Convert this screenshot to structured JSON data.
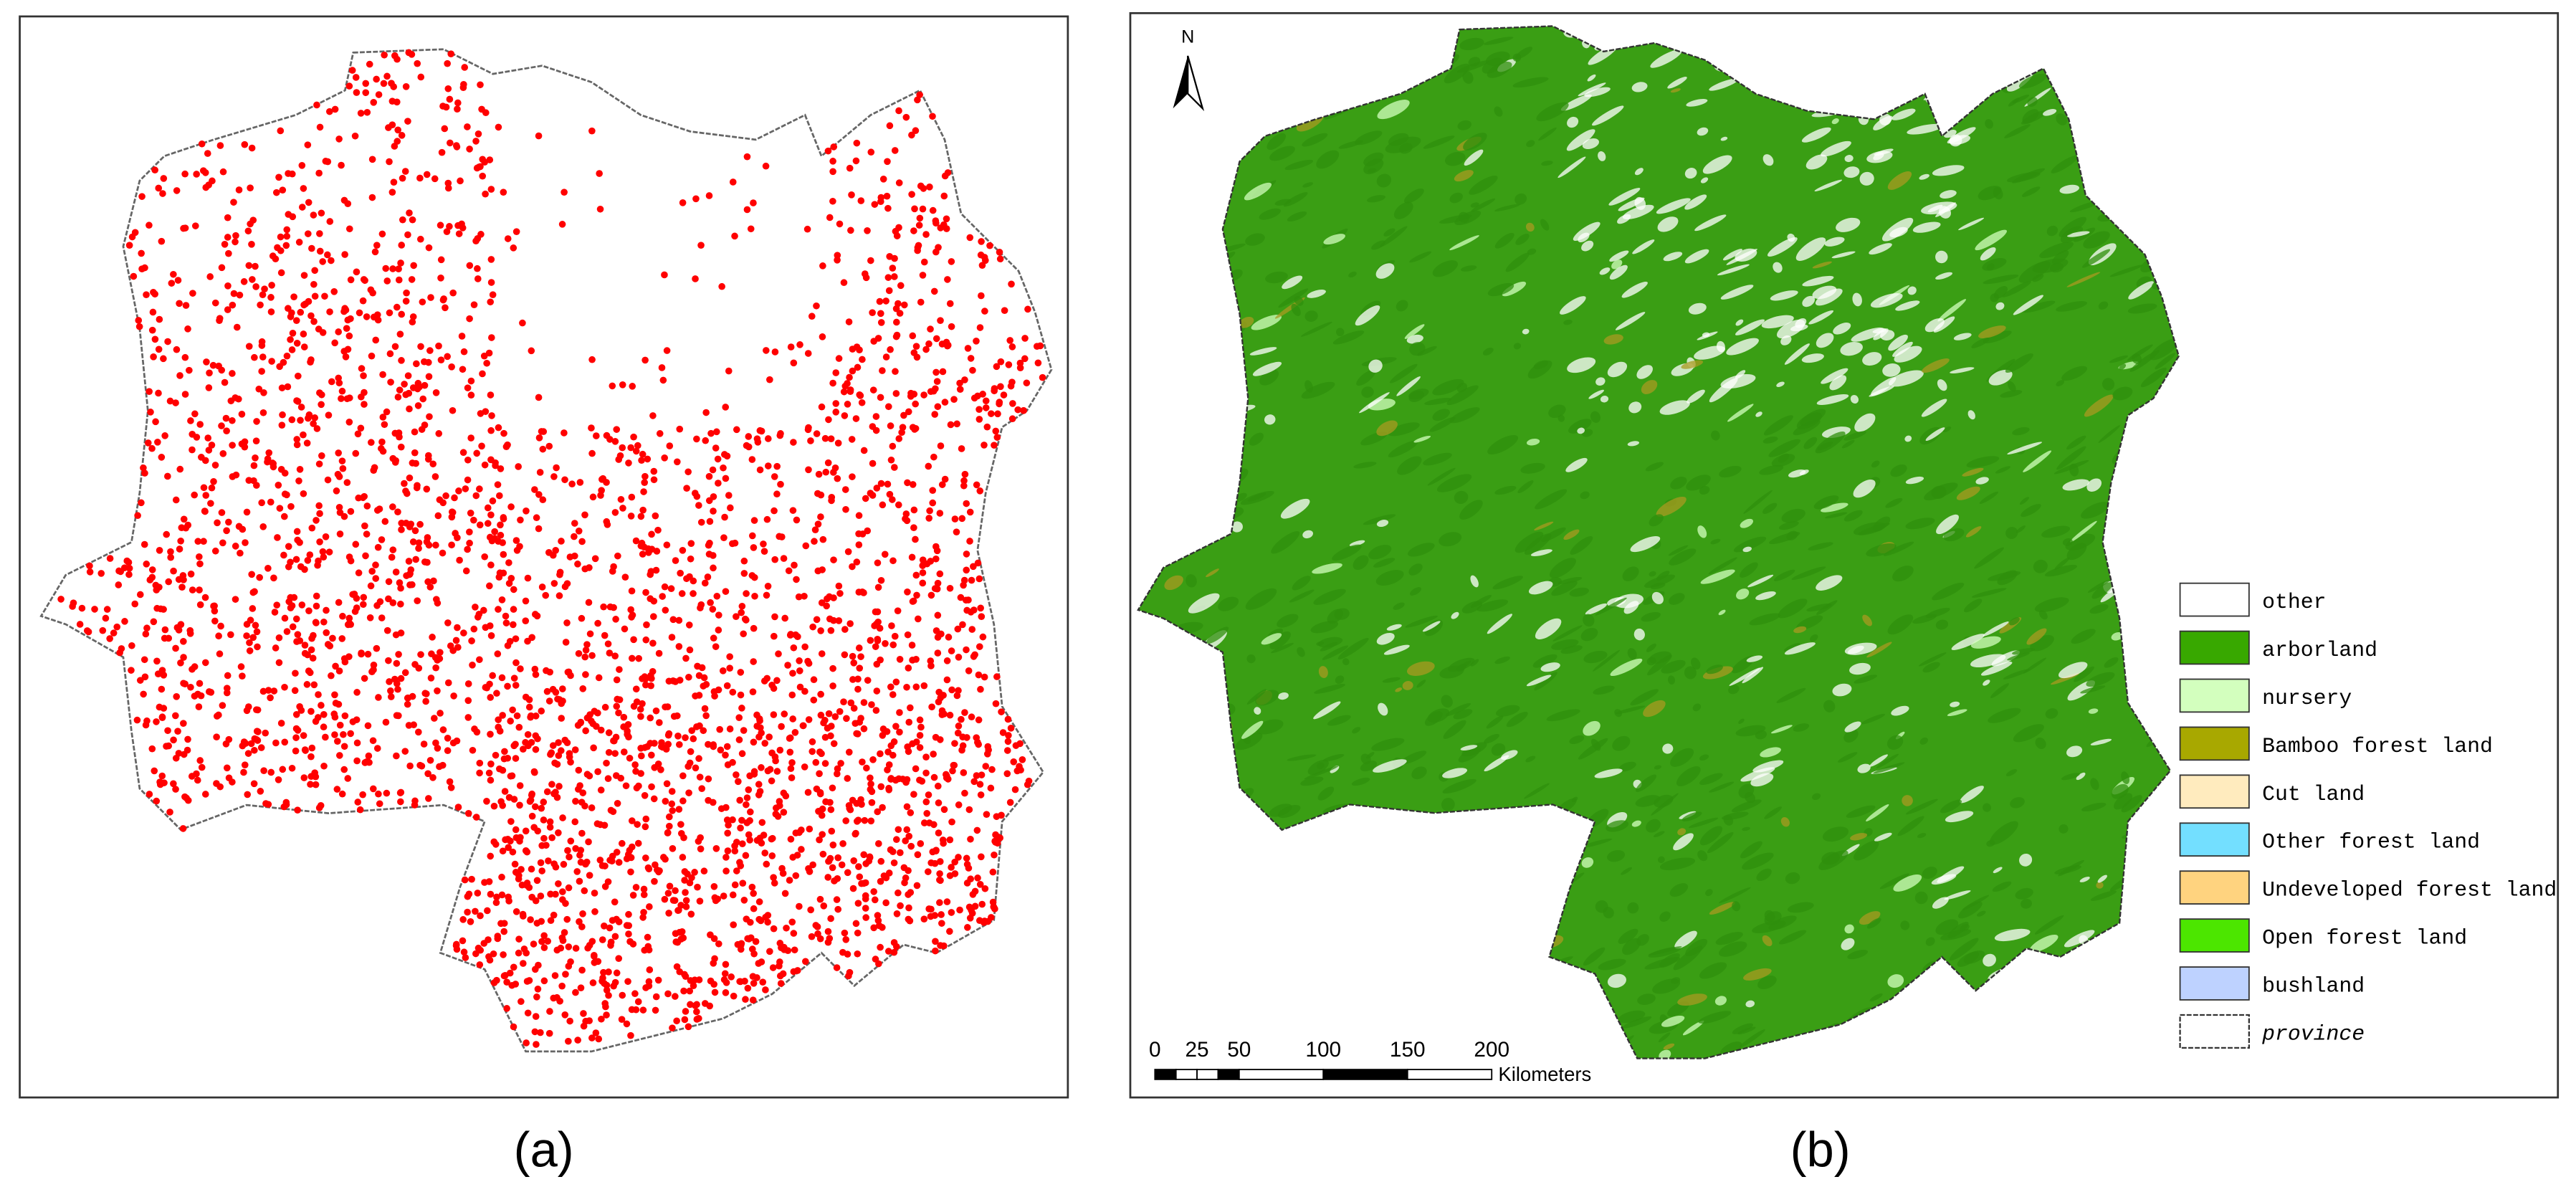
{
  "panels": [
    {
      "label": "(a)"
    },
    {
      "label": "(b)"
    }
  ],
  "north_arrow": {
    "label": "N"
  },
  "scale_bar": {
    "ticks": [
      0,
      25,
      50,
      100,
      150,
      200
    ],
    "unit": "Kilometers"
  },
  "legend": [
    {
      "label": "other",
      "color": "#ffffff"
    },
    {
      "label": "arborland",
      "color": "#38a800"
    },
    {
      "label": "nursery",
      "color": "#d3ffbe"
    },
    {
      "label": "Bamboo forest land",
      "color": "#a8a800"
    },
    {
      "label": "Cut land",
      "color": "#ffebbe"
    },
    {
      "label": "Other forest land",
      "color": "#73dfff"
    },
    {
      "label": "Undeveloped forest land",
      "color": "#ffd37f"
    },
    {
      "label": "Open forest land",
      "color": "#4ce600"
    },
    {
      "label": "bushland",
      "color": "#bed2ff"
    },
    {
      "label": "province",
      "color": "#ffffff"
    }
  ]
}
